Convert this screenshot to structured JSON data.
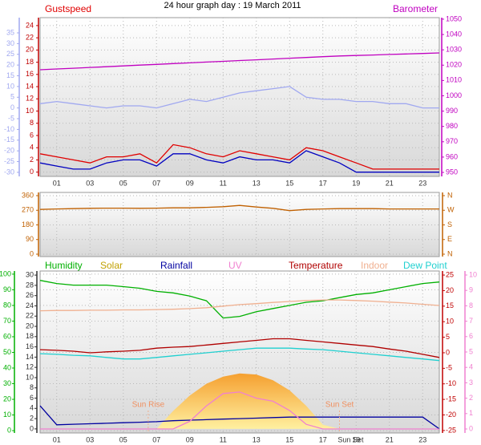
{
  "title": "24 hour graph day : 19 March 2011",
  "chart_data": [
    {
      "type": "line",
      "x": [
        0,
        1,
        2,
        3,
        4,
        5,
        6,
        7,
        8,
        9,
        10,
        11,
        12,
        13,
        14,
        15,
        16,
        17,
        18,
        19,
        20,
        21,
        22,
        23,
        24
      ],
      "xlim": [
        0,
        24
      ],
      "xticks": [
        {
          "value": 1,
          "label": "01"
        },
        {
          "value": 3,
          "label": "03"
        },
        {
          "value": 5,
          "label": "05"
        },
        {
          "value": 7,
          "label": "07"
        },
        {
          "value": 9,
          "label": "09"
        },
        {
          "value": 11,
          "label": "11"
        },
        {
          "value": 13,
          "label": "13"
        },
        {
          "value": 15,
          "label": "15"
        },
        {
          "value": 17,
          "label": "17"
        },
        {
          "value": 19,
          "label": "19"
        },
        {
          "value": 21,
          "label": "21"
        },
        {
          "value": 23,
          "label": "23"
        }
      ],
      "ylim": [
        -0.7,
        25.3
      ],
      "yticks": [
        0,
        2,
        4,
        6,
        8,
        10,
        12,
        14,
        16,
        18,
        20,
        22,
        24
      ],
      "ycolor": "#c00000",
      "y2lim": [
        947.4,
        1051
      ],
      "y2ticks": [
        950,
        960,
        970,
        980,
        990,
        1000,
        1010,
        1020,
        1030,
        1040,
        1050
      ],
      "y2color": "#c000c0",
      "y3lim": [
        -31.9,
        42.1
      ],
      "y3ticks": [
        35,
        30,
        25,
        20,
        15,
        10,
        5,
        0,
        -5,
        -10,
        -15,
        -20,
        -25,
        -30
      ],
      "y3color": "#a0a8f0",
      "grid": true,
      "series": [
        {
          "color": "#a0a8f0",
          "axis": "y3",
          "values": [
            2,
            3,
            2,
            1,
            0,
            1,
            1,
            0,
            2,
            4,
            3,
            5,
            7,
            8,
            9,
            10,
            5,
            4,
            4,
            3,
            3,
            2,
            2,
            0,
            0
          ]
        },
        {
          "name": "Barometer",
          "color": "#c000c0",
          "axis": "y2",
          "values": [
            1017,
            1017.5,
            1018,
            1018.5,
            1019,
            1019.5,
            1020,
            1020.5,
            1021,
            1021.5,
            1022,
            1022.5,
            1023,
            1023.5,
            1024,
            1024.5,
            1025,
            1025.5,
            1026,
            1026.3,
            1026.6,
            1027,
            1027.3,
            1027.6,
            1028
          ]
        },
        {
          "name": "Gustspeed",
          "color": "#e00000",
          "values": [
            3,
            2.5,
            2,
            1.5,
            2.5,
            2.5,
            3,
            1.5,
            4.5,
            4,
            3,
            2.5,
            3.5,
            3,
            2.5,
            2,
            4,
            3.5,
            2.5,
            1.5,
            0.5,
            0.5,
            0.5,
            0.5,
            0.5
          ]
        },
        {
          "color": "#0000c0",
          "values": [
            1.5,
            1,
            0.5,
            0.5,
            1.5,
            2,
            2,
            1,
            3,
            3,
            2,
            1.5,
            2.5,
            2,
            2,
            1.5,
            3.5,
            2.5,
            1.5,
            0,
            0,
            0,
            0,
            0,
            0
          ]
        }
      ]
    },
    {
      "type": "line",
      "x": [
        0,
        1,
        2,
        3,
        4,
        5,
        6,
        7,
        8,
        9,
        10,
        11,
        12,
        13,
        14,
        15,
        16,
        17,
        18,
        19,
        20,
        21,
        22,
        23,
        24
      ],
      "xlim": [
        0,
        24
      ],
      "ylim": [
        -14.8,
        379.7
      ],
      "yticks": [
        360,
        270,
        180,
        90,
        0
      ],
      "ycolor": "#c06000",
      "y2lim": [
        -14.8,
        379.7
      ],
      "y2ticks": [
        {
          "value": 360,
          "label": "N"
        },
        {
          "value": 270,
          "label": "W"
        },
        {
          "value": 180,
          "label": "S"
        },
        {
          "value": 90,
          "label": "E"
        },
        {
          "value": 0,
          "label": "N"
        }
      ],
      "y2color": "#c06000",
      "grid": true,
      "series": [
        {
          "color": "#c06000",
          "values": [
            275,
            278,
            280,
            282,
            283,
            283,
            282,
            283,
            285,
            285,
            288,
            292,
            300,
            290,
            282,
            268,
            275,
            278,
            280,
            280,
            280,
            278,
            278,
            278,
            278
          ]
        }
      ]
    },
    {
      "type": "line",
      "x": [
        0,
        1,
        2,
        3,
        4,
        5,
        6,
        7,
        8,
        9,
        10,
        11,
        12,
        13,
        14,
        15,
        16,
        17,
        18,
        19,
        20,
        21,
        22,
        23,
        24
      ],
      "xlim": [
        0,
        24
      ],
      "xticks": [
        {
          "value": 1,
          "label": "01"
        },
        {
          "value": 3,
          "label": "03"
        },
        {
          "value": 5,
          "label": "05"
        },
        {
          "value": 7,
          "label": "07"
        },
        {
          "value": 9,
          "label": "09"
        },
        {
          "value": 11,
          "label": "11"
        },
        {
          "value": 13,
          "label": "13"
        },
        {
          "value": 15,
          "label": "15"
        },
        {
          "value": 17,
          "label": "17"
        },
        {
          "value": 19,
          "label": "19"
        },
        {
          "value": 21,
          "label": "21"
        },
        {
          "value": 23,
          "label": "23"
        }
      ],
      "ylim": [
        -1.5,
        102
      ],
      "yticks": [
        0,
        10,
        20,
        30,
        40,
        50,
        60,
        70,
        80,
        90,
        100
      ],
      "ycolor": "#00b000",
      "y2lim": [
        -25.8,
        26.3
      ],
      "y2ticks": [
        25,
        20,
        15,
        10,
        5,
        0,
        -5,
        -10,
        -15,
        -20,
        -25
      ],
      "y2color": "#c00000",
      "y3lim": [
        -0.8,
        30.8
      ],
      "y3ticks": [
        0,
        2,
        4,
        6,
        8,
        10,
        12,
        14,
        16,
        18,
        20,
        22,
        24,
        26,
        28,
        30
      ],
      "y3color": "#303030",
      "y4lim": [
        -0.26,
        10.26
      ],
      "y4ticks": [
        0,
        1,
        2,
        3,
        4,
        5,
        6,
        7,
        8,
        9,
        10
      ],
      "y4color": "#f080d0",
      "grid": true,
      "annotations": [
        {
          "text": "Sun Rise",
          "x": 6.5
        },
        {
          "text": "Sun Set",
          "x": 18
        }
      ],
      "axis_annotation": {
        "text": "Sun Set",
        "x": 17.9
      },
      "series": [
        {
          "name": "Solar",
          "color": "#c0a000",
          "axis": "y3",
          "fill": true,
          "values": [
            0,
            0,
            0,
            0,
            0,
            0,
            0,
            0,
            3.5,
            6.5,
            8.8,
            10.2,
            10.8,
            10.6,
            9.5,
            7.5,
            4.5,
            0.8,
            0,
            0,
            0,
            0,
            0,
            0,
            0
          ]
        },
        {
          "name": "Humidity",
          "color": "#00b000",
          "values": [
            96,
            94,
            93,
            93,
            93,
            92,
            91,
            89,
            88,
            86,
            83,
            72,
            73,
            76,
            78,
            80,
            82,
            83,
            85,
            87,
            88,
            90,
            92,
            94,
            95
          ]
        },
        {
          "name": "Rainfall",
          "color": "#0000a0",
          "axis": "y3",
          "values": [
            4.5,
            0.8,
            0.9,
            1,
            1.1,
            1.2,
            1.3,
            1.4,
            1.6,
            1.7,
            1.8,
            1.9,
            2,
            2.1,
            2.2,
            2.3,
            2.3,
            2.3,
            2.3,
            2.3,
            2.3,
            2.3,
            2.3,
            2.3,
            0
          ]
        },
        {
          "name": "UV",
          "color": "#f080d0",
          "axis": "y4",
          "values": [
            0,
            0,
            0,
            0,
            0,
            0,
            0,
            0,
            0,
            0.5,
            1.5,
            2.3,
            2.4,
            2,
            1.8,
            1.2,
            0.3,
            0,
            0,
            0,
            0,
            0,
            0,
            0,
            0
          ]
        },
        {
          "name": "Temperature",
          "color": "#b00000",
          "axis": "y2",
          "values": [
            1,
            0.8,
            0.5,
            0,
            0.3,
            0.5,
            0.8,
            1.5,
            1.8,
            2,
            2.5,
            3,
            3.5,
            4,
            4.5,
            4.5,
            4,
            3.5,
            3,
            2.5,
            2,
            1.2,
            0.5,
            -0.5,
            -1.5
          ]
        },
        {
          "name": "Indoor",
          "color": "#f0b090",
          "axis": "y2",
          "values": [
            13.5,
            13.6,
            13.6,
            13.7,
            13.7,
            13.8,
            13.8,
            13.9,
            14,
            14.2,
            14.5,
            15,
            15.5,
            15.8,
            16.2,
            16.5,
            16.8,
            17,
            17,
            16.8,
            16.6,
            16.3,
            16,
            15.6,
            15.2
          ]
        },
        {
          "name": "Dew Point",
          "color": "#20d0d0",
          "axis": "y2",
          "values": [
            -0.3,
            -0.5,
            -0.8,
            -1,
            -1.5,
            -2,
            -2,
            -1.5,
            -1,
            -0.5,
            0,
            0.5,
            1,
            1.5,
            1.5,
            1.5,
            1.2,
            1,
            0.5,
            0,
            -0.5,
            -1,
            -1.5,
            -2,
            -2.5
          ]
        }
      ]
    }
  ]
}
